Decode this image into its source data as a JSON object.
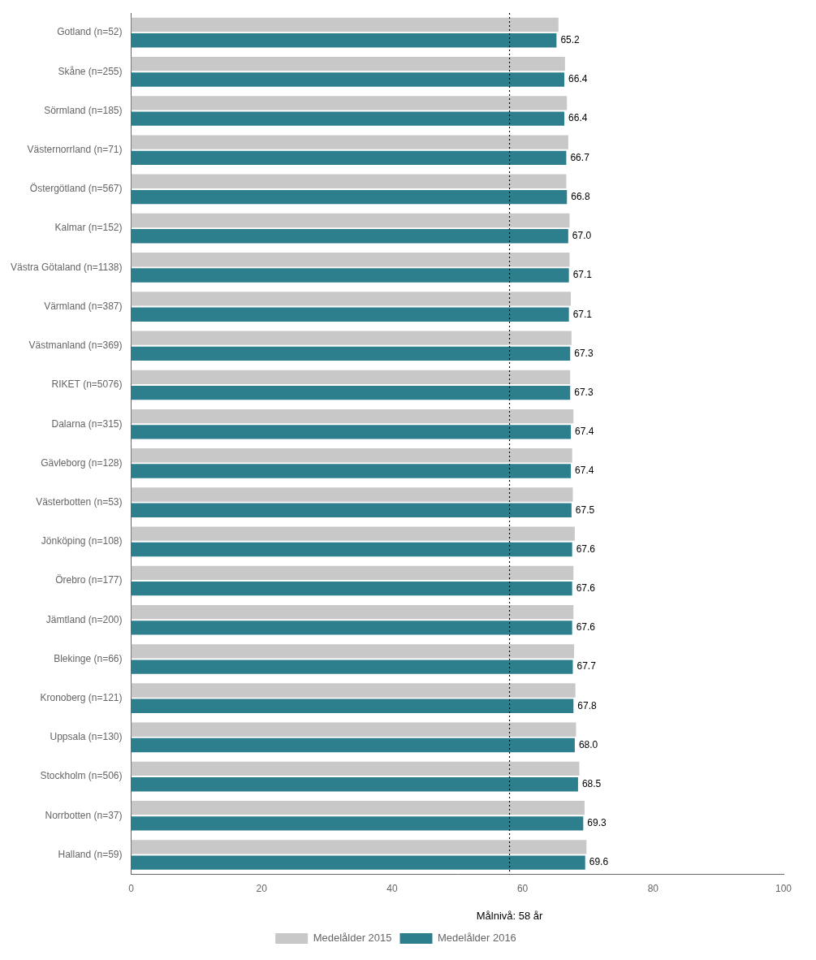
{
  "chart_data": {
    "type": "bar",
    "orientation": "horizontal",
    "categories": [
      "Halland (n=59)",
      "Norrbotten (n=37)",
      "Stockholm (n=506)",
      "Uppsala (n=130)",
      "Kronoberg (n=121)",
      "Blekinge (n=66)",
      "Jämtland (n=200)",
      "Örebro (n=177)",
      "Jönköping (n=108)",
      "Västerbotten (n=53)",
      "Gävleborg (n=128)",
      "Dalarna (n=315)",
      "RIKET (n=5076)",
      "Västmanland (n=369)",
      "Värmland (n=387)",
      "Västra Götaland (n=1138)",
      "Kalmar (n=152)",
      "Östergötland (n=567)",
      "Västernorrland (n=71)",
      "Sörmland (n=185)",
      "Skåne (n=255)",
      "Gotland (n=52)"
    ],
    "series": [
      {
        "name": "Medelålder 2015",
        "color": "#c8c8c8",
        "values": [
          69.8,
          69.5,
          68.7,
          68.2,
          68.1,
          67.9,
          67.8,
          67.8,
          68.0,
          67.7,
          67.6,
          67.8,
          67.3,
          67.5,
          67.4,
          67.2,
          67.2,
          66.7,
          67.0,
          66.8,
          66.5,
          65.5
        ]
      },
      {
        "name": "Medelålder 2016",
        "color": "#2e7f8e",
        "data_labels": true,
        "values": [
          69.6,
          69.3,
          68.5,
          68.0,
          67.8,
          67.7,
          67.6,
          67.6,
          67.6,
          67.5,
          67.4,
          67.4,
          67.3,
          67.3,
          67.1,
          67.1,
          67.0,
          66.8,
          66.7,
          66.4,
          66.4,
          65.2
        ],
        "value_labels": [
          "69.6",
          "69.3",
          "68.5",
          "68.0",
          "67.8",
          "67.7",
          "67.6",
          "67.6",
          "67.6",
          "67.5",
          "67.4",
          "67.4",
          "67.3",
          "67.3",
          "67.1",
          "67.1",
          "67.0",
          "66.8",
          "66.7",
          "66.4",
          "66.4",
          "65.2"
        ]
      }
    ],
    "xlim": [
      0,
      100
    ],
    "xticks": [
      0,
      20,
      40,
      60,
      80,
      100
    ],
    "annotations": [
      {
        "x": 58,
        "text": "Målnivå: 58 år",
        "line_style": "dotted"
      }
    ],
    "grid": false,
    "legend": "bottom"
  }
}
